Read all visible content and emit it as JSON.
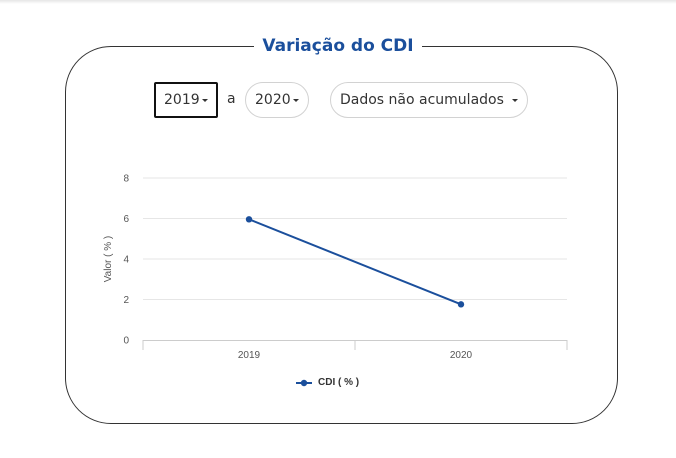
{
  "title": "Variação do CDI",
  "controls": {
    "start_year": "2019",
    "separator": "a",
    "end_year": "2020",
    "mode": "Dados não acumulados"
  },
  "colors": {
    "title": "#1b4f9c",
    "series": "#1b4f9c",
    "grid": "#e6e6e6"
  },
  "chart_data": {
    "type": "line",
    "x": [
      "2019",
      "2020"
    ],
    "series": [
      {
        "name": "CDI ( % )",
        "values": [
          5.96,
          1.76
        ]
      }
    ],
    "ylabel": "Valor ( % )",
    "xlabel": "",
    "ylim": [
      0,
      8
    ],
    "yticks": [
      "0",
      "2",
      "4",
      "6",
      "8"
    ],
    "grid": true,
    "legend": "bottom-center"
  }
}
